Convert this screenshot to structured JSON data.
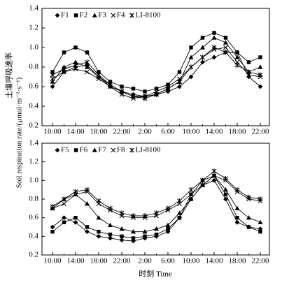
{
  "chart_data": [
    {
      "type": "line",
      "y_label": [
        "土壤呼吸速率",
        "Soil respiration rate/(μmol·m⁻²·s⁻¹)"
      ],
      "categories": [
        "10:00",
        null,
        "14:00",
        null,
        "18:00",
        null,
        "22:00",
        null,
        "2:00",
        null,
        "6:00",
        null,
        "10:00",
        null,
        "14:00",
        null,
        "18:00",
        null,
        "22:00"
      ],
      "ylim": [
        0.2,
        1.4
      ],
      "yticks": [
        0.2,
        0.4,
        0.6,
        0.8,
        {
          "value": 1,
          "label": "1.0"
        },
        1.2,
        1.4
      ],
      "legend": "top-left",
      "series": [
        {
          "name": "F1",
          "color": "#000000",
          "marker": "diamond",
          "values": [
            0.6,
            0.75,
            0.8,
            0.82,
            0.7,
            0.6,
            0.55,
            0.52,
            0.5,
            0.52,
            0.55,
            0.6,
            0.7,
            0.85,
            0.9,
            0.95,
            0.95,
            0.7,
            0.6
          ]
        },
        {
          "name": "F2",
          "color": "#000000",
          "marker": "square",
          "values": [
            0.75,
            0.95,
            1.0,
            0.95,
            0.75,
            0.65,
            0.6,
            0.58,
            0.55,
            0.58,
            0.62,
            0.75,
            1.0,
            1.1,
            1.15,
            1.1,
            0.95,
            0.85,
            0.9
          ]
        },
        {
          "name": "F3",
          "color": "#000000",
          "marker": "triangle",
          "values": [
            0.65,
            0.8,
            0.85,
            0.8,
            0.7,
            0.62,
            0.55,
            0.5,
            0.5,
            0.52,
            0.58,
            0.65,
            0.9,
            1.0,
            1.1,
            1.05,
            0.9,
            0.75,
            0.8
          ]
        },
        {
          "name": "F4",
          "color": "#000000",
          "marker": "x",
          "values": [
            0.68,
            0.75,
            0.78,
            0.75,
            0.68,
            0.6,
            0.52,
            0.48,
            0.5,
            0.55,
            0.6,
            0.68,
            0.8,
            0.9,
            0.98,
            1.0,
            0.85,
            0.72,
            0.7
          ]
        },
        {
          "name": "LI-8100",
          "color": "#000000",
          "marker": "asterisk",
          "values": [
            0.72,
            0.78,
            0.82,
            0.85,
            0.72,
            0.62,
            0.55,
            0.5,
            0.48,
            0.52,
            0.58,
            0.65,
            0.8,
            0.9,
            1.0,
            0.95,
            0.82,
            0.75,
            0.72
          ]
        }
      ]
    },
    {
      "type": "line",
      "x_label": "时刻 Time",
      "categories": [
        "10:00",
        null,
        "14:00",
        null,
        "18:00",
        null,
        "22:00",
        null,
        "2:00",
        null,
        "6:00",
        null,
        "10:00",
        null,
        "14:00",
        null,
        "18:00",
        null,
        "22:00"
      ],
      "ylim": [
        0.2,
        1.4
      ],
      "yticks": [
        0.2,
        0.4,
        0.6,
        0.8,
        {
          "value": 1,
          "label": "1.0"
        },
        1.2,
        1.4
      ],
      "legend": "top-left",
      "series": [
        {
          "name": "F5",
          "color": "#000000",
          "marker": "diamond",
          "values": [
            0.5,
            0.6,
            0.55,
            0.45,
            0.4,
            0.38,
            0.36,
            0.35,
            0.38,
            0.4,
            0.45,
            0.6,
            0.8,
            0.95,
            1.0,
            0.8,
            0.55,
            0.5,
            0.48
          ]
        },
        {
          "name": "F6",
          "color": "#000000",
          "marker": "square",
          "values": [
            0.45,
            0.55,
            0.6,
            0.5,
            0.45,
            0.42,
            0.4,
            0.38,
            0.4,
            0.42,
            0.48,
            0.6,
            0.85,
            1.0,
            1.05,
            0.85,
            0.6,
            0.5,
            0.45
          ]
        },
        {
          "name": "F7",
          "color": "#000000",
          "marker": "triangle",
          "values": [
            0.7,
            0.8,
            0.85,
            0.75,
            0.6,
            0.52,
            0.48,
            0.45,
            0.45,
            0.48,
            0.52,
            0.65,
            0.8,
            0.95,
            1.05,
            0.9,
            0.7,
            0.6,
            0.55
          ]
        },
        {
          "name": "F8",
          "color": "#000000",
          "marker": "x",
          "values": [
            0.7,
            0.75,
            0.85,
            0.88,
            0.75,
            0.68,
            0.62,
            0.6,
            0.6,
            0.62,
            0.68,
            0.75,
            0.85,
            0.95,
            1.05,
            1.0,
            0.88,
            0.8,
            0.78
          ]
        },
        {
          "name": "LI-8100",
          "color": "#000000",
          "marker": "asterisk",
          "values": [
            0.72,
            0.8,
            0.88,
            0.9,
            0.78,
            0.7,
            0.65,
            0.62,
            0.62,
            0.65,
            0.7,
            0.78,
            0.9,
            1.0,
            1.1,
            1.02,
            0.9,
            0.82,
            0.8
          ]
        }
      ]
    }
  ]
}
